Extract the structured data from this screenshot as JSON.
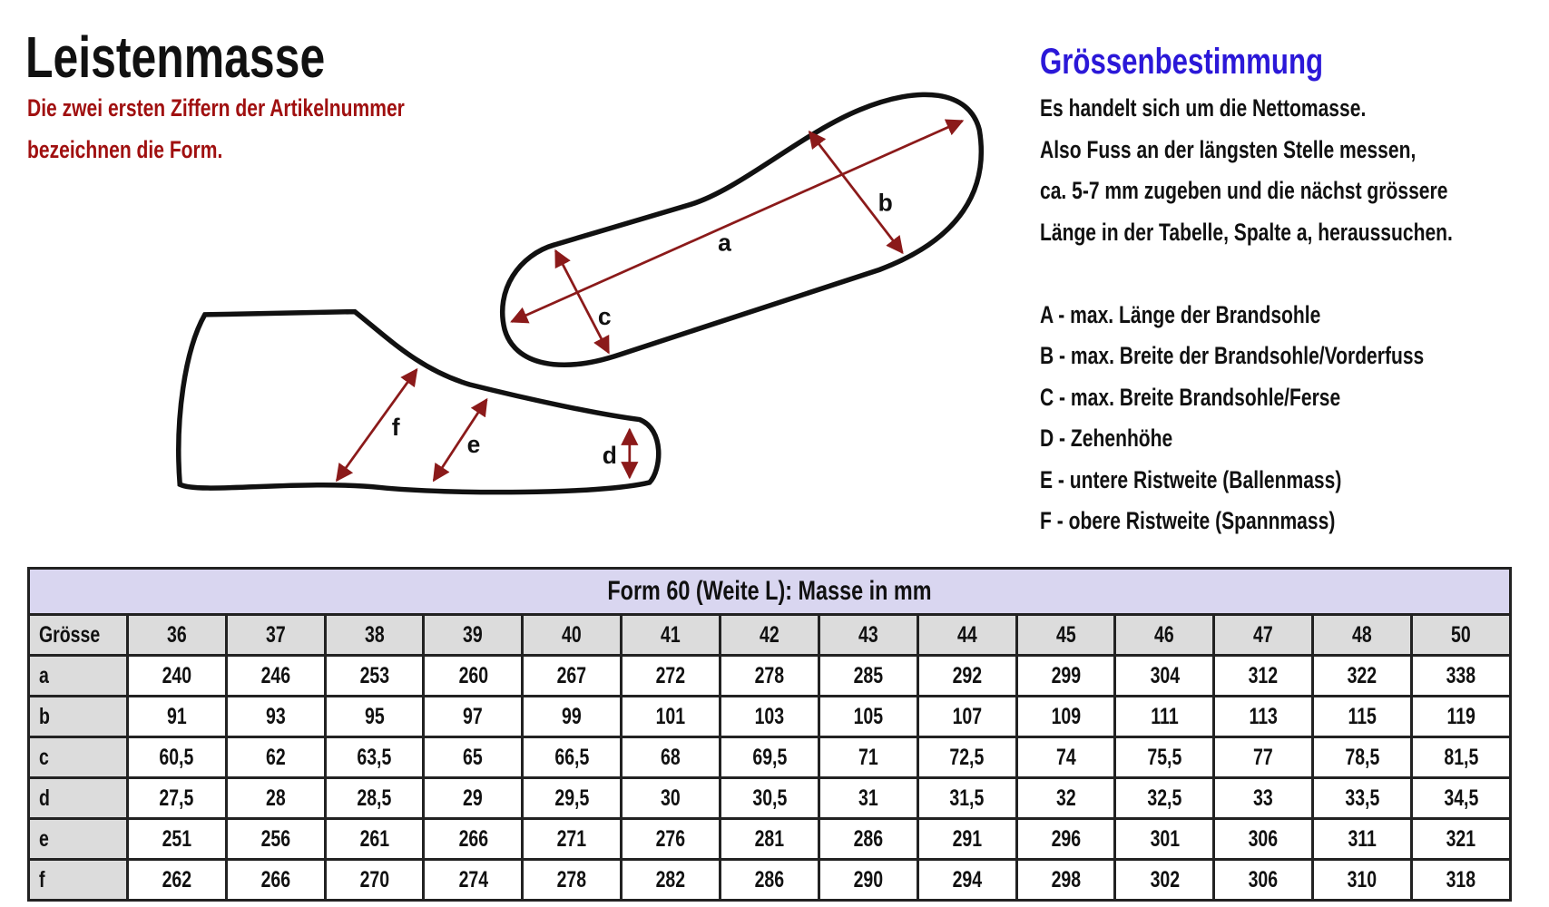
{
  "title": "Leistenmasse",
  "subtitle_lines": [
    "Die zwei ersten Ziffern der Artikelnummer",
    "bezeichnen die Form."
  ],
  "right": {
    "heading": "Grössenbestimmung",
    "lines": [
      "Es handelt sich um die Nettomasse.",
      "Also Fuss an der längsten Stelle messen,",
      "ca. 5-7 mm zugeben und die nächst grössere",
      "Länge in der Tabelle, Spalte a, heraussuchen."
    ],
    "legend": [
      "A - max. Länge der Brandsohle",
      "B - max. Breite der Brandsohle/Vorderfuss",
      "C - max. Breite Brandsohle/Ferse",
      "D - Zehenhöhe",
      "E - untere Ristweite (Ballenmass)",
      "F - obere Ristweite (Spannmass)"
    ]
  },
  "diagram_labels": {
    "a": "a",
    "b": "b",
    "c": "c",
    "d": "d",
    "e": "e",
    "f": "f"
  },
  "colors": {
    "title_red": "#a01010",
    "heading_blue": "#2b18d8",
    "arrow": "#8b1a1a",
    "table_caption_bg": "#d9d6f0",
    "table_header_bg": "#dcdcdc"
  },
  "table": {
    "caption": "Form 60 (Weite L): Masse in mm",
    "header_label": "Grösse",
    "sizes": [
      "36",
      "37",
      "38",
      "39",
      "40",
      "41",
      "42",
      "43",
      "44",
      "45",
      "46",
      "47",
      "48",
      "50"
    ],
    "rows": [
      {
        "label": "a",
        "values": [
          "240",
          "246",
          "253",
          "260",
          "267",
          "272",
          "278",
          "285",
          "292",
          "299",
          "304",
          "312",
          "322",
          "338"
        ]
      },
      {
        "label": "b",
        "values": [
          "91",
          "93",
          "95",
          "97",
          "99",
          "101",
          "103",
          "105",
          "107",
          "109",
          "111",
          "113",
          "115",
          "119"
        ]
      },
      {
        "label": "c",
        "values": [
          "60,5",
          "62",
          "63,5",
          "65",
          "66,5",
          "68",
          "69,5",
          "71",
          "72,5",
          "74",
          "75,5",
          "77",
          "78,5",
          "81,5"
        ]
      },
      {
        "label": "d",
        "values": [
          "27,5",
          "28",
          "28,5",
          "29",
          "29,5",
          "30",
          "30,5",
          "31",
          "31,5",
          "32",
          "32,5",
          "33",
          "33,5",
          "34,5"
        ]
      },
      {
        "label": "e",
        "values": [
          "251",
          "256",
          "261",
          "266",
          "271",
          "276",
          "281",
          "286",
          "291",
          "296",
          "301",
          "306",
          "311",
          "321"
        ]
      },
      {
        "label": "f",
        "values": [
          "262",
          "266",
          "270",
          "274",
          "278",
          "282",
          "286",
          "290",
          "294",
          "298",
          "302",
          "306",
          "310",
          "318"
        ]
      }
    ]
  }
}
